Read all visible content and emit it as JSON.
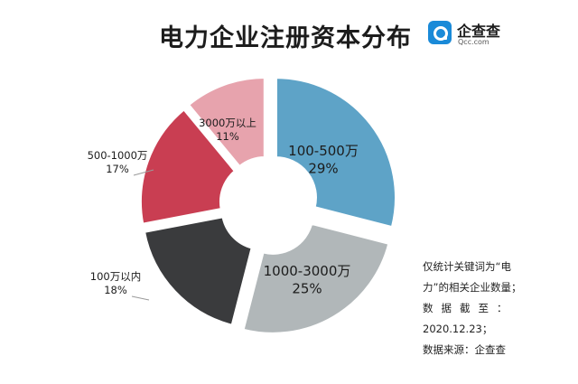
{
  "title": "电力企业注册资本分布",
  "logo": {
    "name": "企查查",
    "sub": "Qcc.com"
  },
  "notes": [
    "仅统计关键词为“电",
    "力”的相关企业数量；",
    "数据截至：",
    "2020.12.23；",
    "数据来源：企查查"
  ],
  "chart_data": {
    "type": "pie",
    "donut": true,
    "title": "电力企业注册资本分布",
    "slices": [
      {
        "label": "100-500万",
        "value": 29,
        "value_label": "29%",
        "color": "#5ea3c7"
      },
      {
        "label": "1000-3000万",
        "value": 25,
        "value_label": "25%",
        "color": "#b1b7b9"
      },
      {
        "label": "100万以内",
        "value": 18,
        "value_label": "18%",
        "color": "#3a3b3d"
      },
      {
        "label": "500-1000万",
        "value": 17,
        "value_label": "17%",
        "color": "#c93e52"
      },
      {
        "label": "3000万以上",
        "value": 11,
        "value_label": "11%",
        "color": "#e7a3ad"
      }
    ]
  }
}
